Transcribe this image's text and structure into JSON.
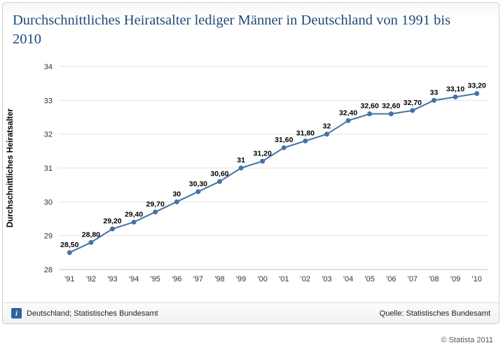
{
  "title": "Durchschnittliches Heiratsalter lediger Männer in Deutschland von 1991 bis 2010",
  "chart_data": {
    "type": "line",
    "title": "Durchschnittliches Heiratsalter lediger Männer in Deutschland von 1991 bis 2010",
    "categories": [
      "'91",
      "'92",
      "'93",
      "'94",
      "'95",
      "'96",
      "'97",
      "'98",
      "'99",
      "'00",
      "'01",
      "'02",
      "'03",
      "'04",
      "'05",
      "'06",
      "'07",
      "'08",
      "'09",
      "'10"
    ],
    "values": [
      28.5,
      28.8,
      29.2,
      29.4,
      29.7,
      30,
      30.3,
      30.6,
      31,
      31.2,
      31.6,
      31.8,
      32,
      32.4,
      32.6,
      32.6,
      32.7,
      33,
      33.1,
      33.2
    ],
    "labels": [
      "28,50",
      "28,80",
      "29,20",
      "29,40",
      "29,70",
      "30",
      "30,30",
      "30,60",
      "31",
      "31,20",
      "31,60",
      "31,80",
      "32",
      "32,40",
      "32,60",
      "32,60",
      "32,70",
      "33",
      "33,10",
      "33,20"
    ],
    "xlabel": "",
    "ylabel": "Durchschnittliches Heiratsalter",
    "ylim": [
      28,
      34
    ],
    "yticks": [
      28,
      29,
      30,
      31,
      32,
      33,
      34
    ],
    "line_color": "#4572a7",
    "grid": true,
    "legend_position": "none"
  },
  "footer": {
    "left_text": "Deutschland; Statistisches Bundesamt",
    "right_text": "Quelle: Statistisches Bundesamt",
    "info_icon_glyph": "i"
  },
  "copyright": "© Statista 2011"
}
